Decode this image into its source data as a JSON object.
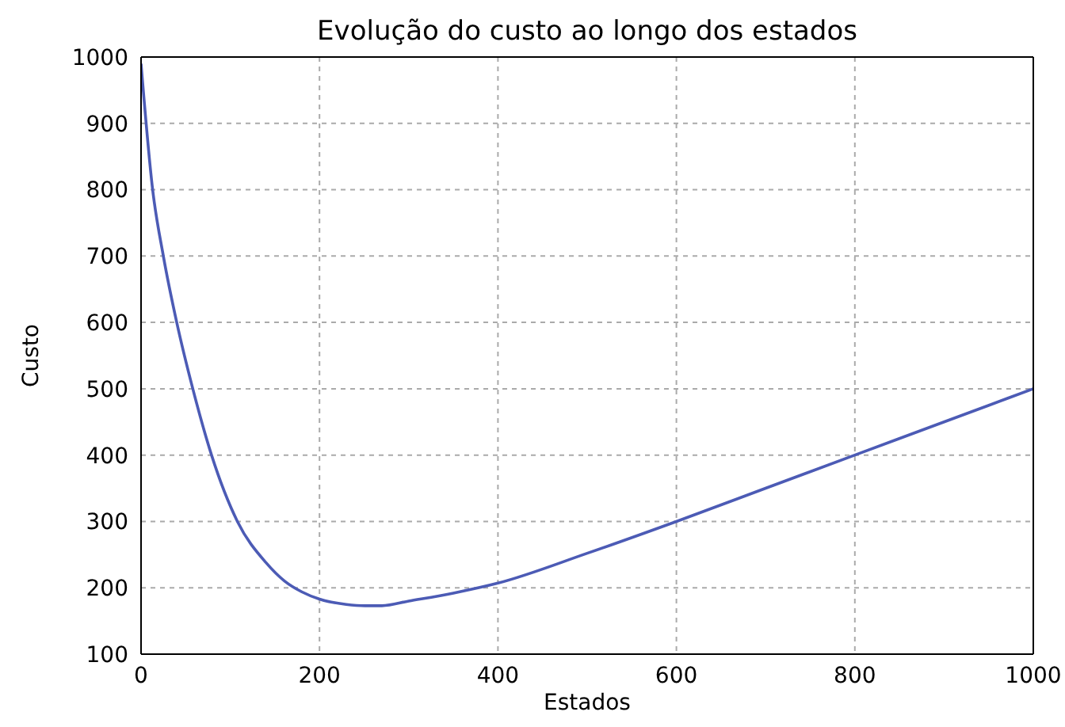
{
  "chart_data": {
    "type": "line",
    "title": "Evolução do custo ao longo dos estados",
    "xlabel": "Estados",
    "ylabel": "Custo",
    "x": [
      0,
      13,
      25,
      40,
      58,
      79,
      108,
      140,
      161,
      180,
      200,
      230,
      251,
      270,
      300,
      350,
      400,
      500,
      600,
      700,
      800,
      900,
      1000
    ],
    "series": [
      {
        "color": "#4c5bb5",
        "values": [
          990,
          800,
          700,
          600,
          500,
          400,
          300,
          238,
          210,
          194,
          183,
          175,
          173,
          173,
          180,
          192,
          207,
          252,
          300,
          350,
          400,
          450,
          500
        ]
      }
    ],
    "xlim": [
      0,
      1000
    ],
    "xticks": [
      0,
      200,
      400,
      600,
      800,
      1000
    ],
    "ylim": [
      100,
      1000
    ],
    "yticks": [
      100,
      200,
      300,
      400,
      500,
      600,
      700,
      800,
      900,
      1000
    ],
    "grid": true,
    "marker": "none",
    "line_style": "solid"
  }
}
